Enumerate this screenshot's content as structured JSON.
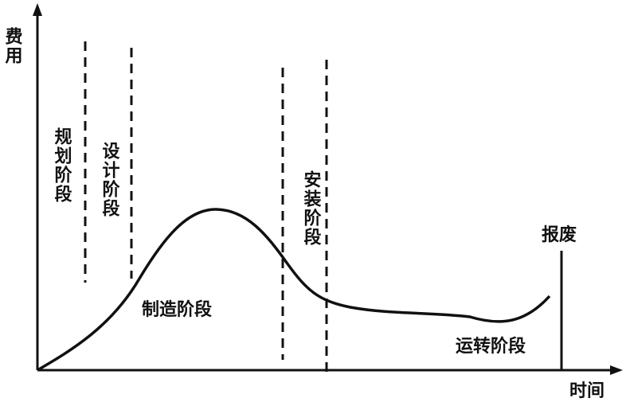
{
  "axes": {
    "y_label": "费用",
    "x_label": "时间"
  },
  "phases": {
    "planning": "规划阶段",
    "design": "设计阶段",
    "manufacturing": "制造阶段",
    "installation": "安装阶段",
    "operation": "运转阶段",
    "scrap": "报废"
  }
}
